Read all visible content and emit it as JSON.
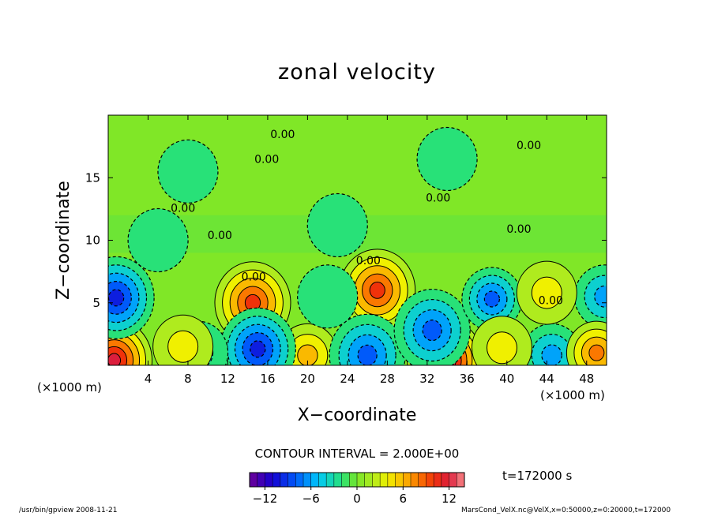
{
  "chart_data": {
    "type": "heatmap",
    "title": "zonal velocity",
    "xlabel": "X−coordinate",
    "ylabel": "Z−coordinate",
    "x_unit": "(×1000 m)",
    "x_ticks": [
      4,
      8,
      12,
      16,
      20,
      24,
      28,
      32,
      36,
      40,
      44,
      48
    ],
    "y_ticks": [
      5,
      10,
      15
    ],
    "xlim": [
      0,
      50
    ],
    "ylim": [
      0,
      20
    ],
    "contour_interval": "CONTOUR INTERVAL = 2.000E+00",
    "contour_labels": [
      {
        "text": "0.00",
        "x": 17.5,
        "y": 18.5
      },
      {
        "text": "0.00",
        "x": 42.2,
        "y": 17.6
      },
      {
        "text": "0.00",
        "x": 15.9,
        "y": 16.5
      },
      {
        "text": "0.00",
        "x": 33.1,
        "y": 13.4
      },
      {
        "text": "0.00",
        "x": 7.5,
        "y": 12.6
      },
      {
        "text": "0.00",
        "x": 11.2,
        "y": 10.4
      },
      {
        "text": "0.00",
        "x": 41.2,
        "y": 10.9
      },
      {
        "text": "0.00",
        "x": 26.1,
        "y": 8.4
      },
      {
        "text": "0.00",
        "x": 14.6,
        "y": 7.1
      },
      {
        "text": "0.00",
        "x": 44.4,
        "y": 5.2
      }
    ],
    "features": [
      {
        "x": 14.5,
        "y": 5.0,
        "value": 10
      },
      {
        "x": 27.0,
        "y": 6.0,
        "value": 10
      },
      {
        "x": 33.8,
        "y": 0.4,
        "value": 13
      },
      {
        "x": 0.6,
        "y": 0.4,
        "value": 12
      },
      {
        "x": 20.0,
        "y": 0.8,
        "value": 6
      },
      {
        "x": 0.8,
        "y": 5.4,
        "value": -9
      },
      {
        "x": 15.0,
        "y": 1.3,
        "value": -10
      },
      {
        "x": 26.0,
        "y": 0.8,
        "value": -8
      },
      {
        "x": 32.5,
        "y": 2.8,
        "value": -8
      },
      {
        "x": 38.5,
        "y": 5.3,
        "value": -7
      },
      {
        "x": 49.8,
        "y": 5.5,
        "value": -6
      },
      {
        "x": 44.5,
        "y": 0.8,
        "value": -6
      },
      {
        "x": 9.0,
        "y": 1.0,
        "value": -3
      },
      {
        "x": 39.5,
        "y": 1.4,
        "value": 4
      },
      {
        "x": 49.0,
        "y": 1.0,
        "value": 7
      },
      {
        "x": 44.0,
        "y": 5.8,
        "value": 4
      },
      {
        "x": 22.0,
        "y": 5.5,
        "value": -2
      },
      {
        "x": 7.5,
        "y": 1.5,
        "value": 3
      },
      {
        "x": 8.0,
        "y": 15.5,
        "value": -2
      },
      {
        "x": 34.0,
        "y": 16.5,
        "value": -1.5
      },
      {
        "x": 23.0,
        "y": 11.2,
        "value": -1.5
      },
      {
        "x": 5.0,
        "y": 10.0,
        "value": -1.5
      }
    ],
    "colorbar": {
      "range": [
        -14,
        14
      ],
      "ticks": [
        -12,
        -6,
        0,
        6,
        12
      ],
      "tick_labels": [
        "−12",
        "−6",
        "0",
        "6",
        "12"
      ]
    },
    "time": "t=172000 s"
  },
  "footer": {
    "left": "/usr/bin/gpview   2008-11-21",
    "right": "MarsCond_VelX.nc@VelX,x=0:50000,z=0:20000,t=172000"
  }
}
